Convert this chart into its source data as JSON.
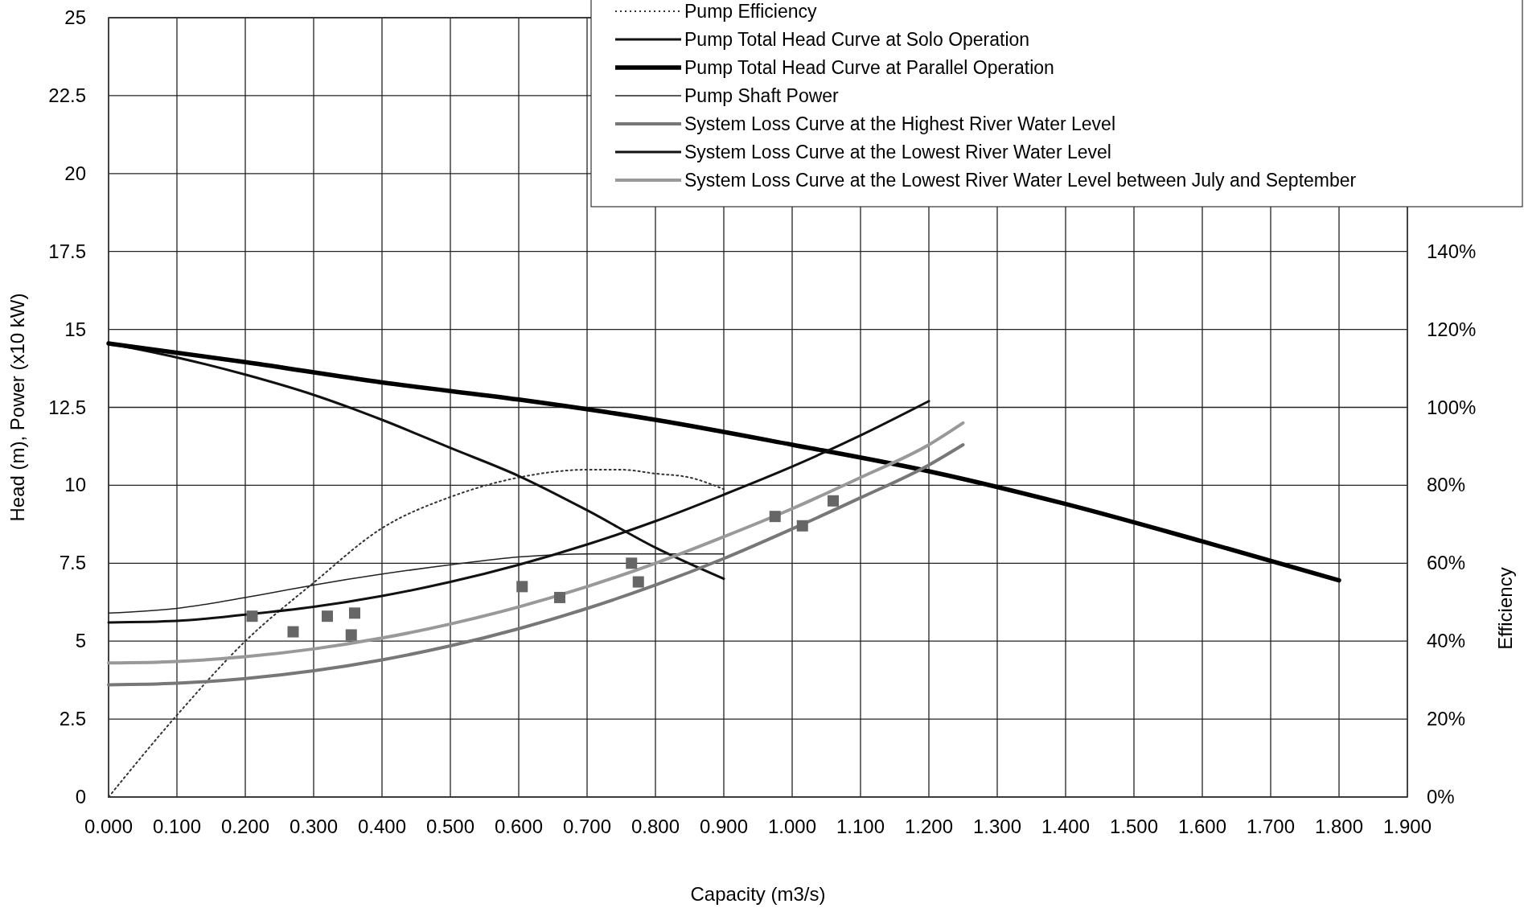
{
  "chart_data": {
    "type": "line",
    "xlabel": "Capacity (m3/s)",
    "ylabel": "Head (m), Power (x10 kW)",
    "y2label": "Efficiency",
    "xlim": [
      0,
      1.9
    ],
    "ylim": [
      0,
      25
    ],
    "y2lim": [
      0,
      200
    ],
    "xticks": [
      {
        "value": 0,
        "label": "0.000"
      },
      {
        "value": 0.1,
        "label": "0.100"
      },
      {
        "value": 0.2,
        "label": "0.200"
      },
      {
        "value": 0.3,
        "label": "0.300"
      },
      {
        "value": 0.4,
        "label": "0.400"
      },
      {
        "value": 0.5,
        "label": "0.500"
      },
      {
        "value": 0.6,
        "label": "0.600"
      },
      {
        "value": 0.7,
        "label": "0.700"
      },
      {
        "value": 0.8,
        "label": "0.800"
      },
      {
        "value": 0.9,
        "label": "0.900"
      },
      {
        "value": 1.0,
        "label": "1.000"
      },
      {
        "value": 1.1,
        "label": "1.100"
      },
      {
        "value": 1.2,
        "label": "1.200"
      },
      {
        "value": 1.3,
        "label": "1.300"
      },
      {
        "value": 1.4,
        "label": "1.400"
      },
      {
        "value": 1.5,
        "label": "1.500"
      },
      {
        "value": 1.6,
        "label": "1.600"
      },
      {
        "value": 1.7,
        "label": "1.700"
      },
      {
        "value": 1.8,
        "label": "1.800"
      },
      {
        "value": 1.9,
        "label": "1.900"
      }
    ],
    "yticks": [
      0,
      2.5,
      5,
      7.5,
      10,
      12.5,
      15,
      17.5,
      20,
      22.5,
      25
    ],
    "y2ticks": [
      {
        "value": 0,
        "label": "0%"
      },
      {
        "value": 20,
        "label": "20%"
      },
      {
        "value": 40,
        "label": "40%"
      },
      {
        "value": 60,
        "label": "60%"
      },
      {
        "value": 80,
        "label": "80%"
      },
      {
        "value": 100,
        "label": "100%"
      },
      {
        "value": 120,
        "label": "120%"
      },
      {
        "value": 140,
        "label": "140%"
      }
    ],
    "grid": true,
    "legend": "top right",
    "series": [
      {
        "name": "Pump Efficiency",
        "color": "#333333",
        "axis": "y2",
        "line_style": "dotted",
        "x": [
          0,
          0.1,
          0.2,
          0.3,
          0.4,
          0.5,
          0.6,
          0.7,
          0.75,
          0.8,
          0.85,
          0.9
        ],
        "values": [
          0,
          21,
          40,
          55,
          69,
          77,
          82,
          84,
          84,
          83,
          82,
          79
        ]
      },
      {
        "name": "Pump Total Head Curve at Solo Operation",
        "color": "#111111",
        "x": [
          0,
          0.1,
          0.2,
          0.3,
          0.4,
          0.5,
          0.6,
          0.7,
          0.8,
          0.9
        ],
        "values": [
          14.55,
          14.1,
          13.55,
          12.9,
          12.1,
          11.2,
          10.3,
          9.2,
          8.0,
          7.0
        ]
      },
      {
        "name": "Pump Total Head Curve at Parallel Operation",
        "color": "#000000",
        "x": [
          0,
          0.2,
          0.4,
          0.6,
          0.8,
          1.0,
          1.2,
          1.4,
          1.6,
          1.8
        ],
        "values": [
          14.55,
          13.95,
          13.3,
          12.75,
          12.1,
          11.3,
          10.45,
          9.4,
          8.2,
          6.95
        ]
      },
      {
        "name": "Pump Shaft Power",
        "color": "#222222",
        "x": [
          0,
          0.1,
          0.2,
          0.3,
          0.4,
          0.5,
          0.6,
          0.7,
          0.8,
          0.9
        ],
        "values": [
          5.9,
          6.05,
          6.4,
          6.8,
          7.15,
          7.45,
          7.7,
          7.8,
          7.8,
          7.8
        ]
      },
      {
        "name": "System Loss Curve at the Highest River Water Level",
        "color": "#777777",
        "x": [
          0,
          0.1,
          0.2,
          0.3,
          0.4,
          0.5,
          0.6,
          0.7,
          0.8,
          0.9,
          1.0,
          1.1,
          1.2,
          1.25
        ],
        "values": [
          3.6,
          3.65,
          3.8,
          4.05,
          4.4,
          4.85,
          5.4,
          6.05,
          6.8,
          7.65,
          8.6,
          9.6,
          10.65,
          11.3
        ]
      },
      {
        "name": "System Loss Curve at the Lowest River Water Level",
        "color": "#111111",
        "x": [
          0,
          0.1,
          0.2,
          0.3,
          0.4,
          0.5,
          0.6,
          0.7,
          0.8,
          0.9,
          1.0,
          1.1,
          1.2
        ],
        "values": [
          5.6,
          5.65,
          5.85,
          6.1,
          6.45,
          6.9,
          7.45,
          8.1,
          8.85,
          9.7,
          10.6,
          11.6,
          12.7
        ]
      },
      {
        "name": "System Loss Curve at the Lowest River Water Level between July and September",
        "color": "#999999",
        "x": [
          0,
          0.1,
          0.2,
          0.3,
          0.4,
          0.5,
          0.6,
          0.7,
          0.8,
          0.9,
          1.0,
          1.1,
          1.2,
          1.25
        ],
        "values": [
          4.3,
          4.35,
          4.5,
          4.75,
          5.1,
          5.55,
          6.1,
          6.75,
          7.5,
          8.35,
          9.25,
          10.25,
          11.3,
          12.0
        ]
      },
      {
        "type": "scatter",
        "marker": "square",
        "color": "#666666",
        "x": [
          0.21,
          0.27,
          0.32,
          0.355,
          0.36,
          0.605,
          0.66,
          0.765,
          0.775,
          0.975,
          1.015,
          1.06
        ],
        "values": [
          5.8,
          5.3,
          5.8,
          5.2,
          5.9,
          6.75,
          6.4,
          7.5,
          6.9,
          9.0,
          8.7,
          9.5
        ]
      }
    ]
  }
}
